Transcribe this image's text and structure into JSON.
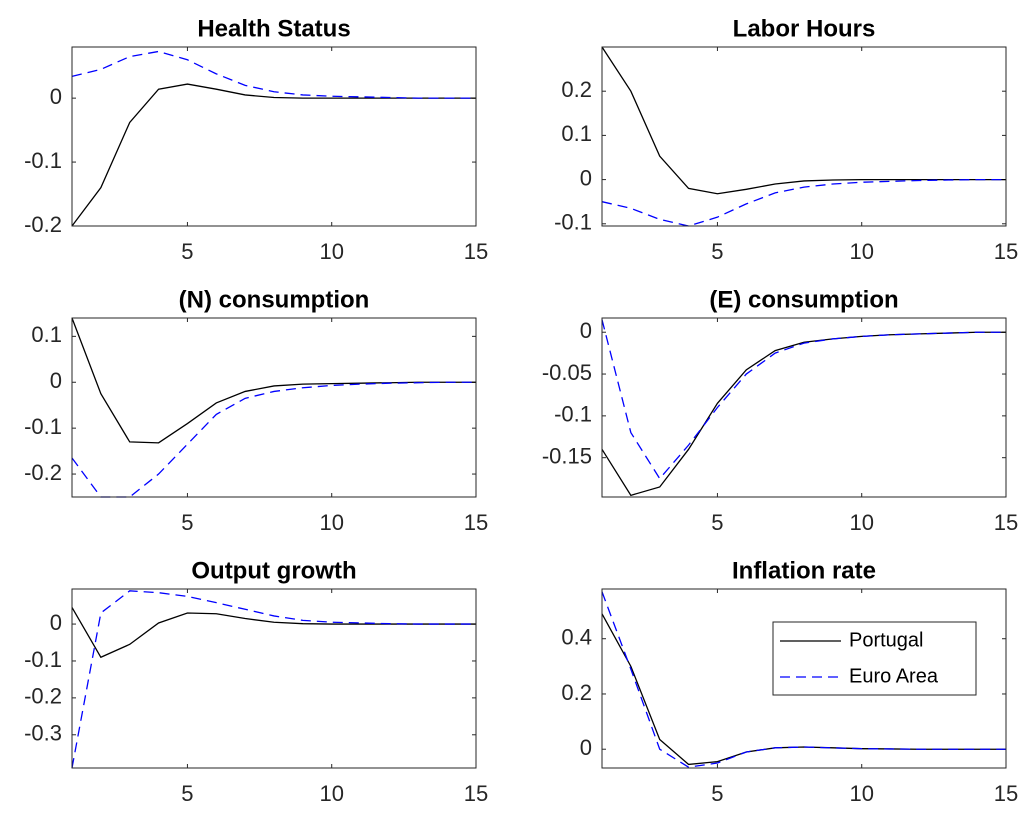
{
  "chart_data": [
    {
      "type": "line",
      "title": "Health Status",
      "x": [
        1,
        2,
        3,
        4,
        5,
        6,
        7,
        8,
        9,
        10,
        11,
        12,
        13,
        14,
        15
      ],
      "xlim": [
        1,
        15
      ],
      "xticks": [
        5,
        10,
        15
      ],
      "ylim": [
        -0.2,
        0.08
      ],
      "yticks": [
        -0.2,
        -0.1,
        0
      ],
      "series": [
        {
          "color": "#000000",
          "dash": "solid",
          "values": [
            -0.2,
            -0.14,
            -0.038,
            0.014,
            0.022,
            0.014,
            0.005,
            0.001,
            0,
            0,
            0,
            0,
            0,
            0,
            0
          ]
        },
        {
          "color": "#0000ff",
          "dash": "dashed",
          "values": [
            0.034,
            0.045,
            0.065,
            0.073,
            0.06,
            0.038,
            0.02,
            0.01,
            0.005,
            0.003,
            0.002,
            0.001,
            0,
            0,
            0
          ]
        }
      ]
    },
    {
      "type": "line",
      "title": "Labor Hours",
      "x": [
        1,
        2,
        3,
        4,
        5,
        6,
        7,
        8,
        9,
        10,
        11,
        12,
        13,
        14,
        15
      ],
      "xlim": [
        1,
        15
      ],
      "xticks": [
        5,
        10,
        15
      ],
      "ylim": [
        -0.105,
        0.3
      ],
      "yticks": [
        -0.1,
        0,
        0.1,
        0.2
      ],
      "series": [
        {
          "color": "#000000",
          "dash": "solid",
          "values": [
            0.3,
            0.2,
            0.053,
            -0.02,
            -0.032,
            -0.022,
            -0.01,
            -0.003,
            -0.001,
            0,
            0,
            0,
            0,
            0,
            0
          ]
        },
        {
          "color": "#0000ff",
          "dash": "dashed",
          "values": [
            -0.05,
            -0.065,
            -0.09,
            -0.105,
            -0.085,
            -0.055,
            -0.03,
            -0.017,
            -0.01,
            -0.006,
            -0.004,
            -0.002,
            -0.001,
            0,
            0
          ]
        }
      ]
    },
    {
      "type": "line",
      "title": "(N) consumption",
      "x": [
        1,
        2,
        3,
        4,
        5,
        6,
        7,
        8,
        9,
        10,
        11,
        12,
        13,
        14,
        15
      ],
      "xlim": [
        1,
        15
      ],
      "xticks": [
        5,
        10,
        15
      ],
      "ylim": [
        -0.25,
        0.14
      ],
      "yticks": [
        -0.2,
        -0.1,
        0,
        0.1
      ],
      "series": [
        {
          "color": "#000000",
          "dash": "solid",
          "values": [
            0.14,
            -0.025,
            -0.13,
            -0.132,
            -0.09,
            -0.045,
            -0.02,
            -0.008,
            -0.004,
            -0.003,
            -0.002,
            -0.001,
            0,
            0,
            0
          ]
        },
        {
          "color": "#0000ff",
          "dash": "dashed",
          "values": [
            -0.165,
            -0.25,
            -0.25,
            -0.2,
            -0.135,
            -0.07,
            -0.035,
            -0.02,
            -0.012,
            -0.007,
            -0.004,
            -0.002,
            -0.001,
            0,
            0
          ]
        }
      ]
    },
    {
      "type": "line",
      "title": "(E) consumption",
      "x": [
        1,
        2,
        3,
        4,
        5,
        6,
        7,
        8,
        9,
        10,
        11,
        12,
        13,
        14,
        15
      ],
      "xlim": [
        1,
        15
      ],
      "xticks": [
        5,
        10,
        15
      ],
      "ylim": [
        -0.197,
        0.017
      ],
      "yticks": [
        -0.15,
        -0.1,
        -0.05,
        0
      ],
      "series": [
        {
          "color": "#000000",
          "dash": "solid",
          "values": [
            -0.14,
            -0.195,
            -0.185,
            -0.14,
            -0.085,
            -0.045,
            -0.022,
            -0.012,
            -0.008,
            -0.005,
            -0.003,
            -0.002,
            -0.001,
            0,
            0
          ]
        },
        {
          "color": "#0000ff",
          "dash": "dashed",
          "values": [
            0.015,
            -0.12,
            -0.175,
            -0.135,
            -0.09,
            -0.05,
            -0.025,
            -0.013,
            -0.008,
            -0.005,
            -0.003,
            -0.002,
            -0.001,
            0,
            0
          ]
        }
      ]
    },
    {
      "type": "line",
      "title": "Output growth",
      "x": [
        1,
        2,
        3,
        4,
        5,
        6,
        7,
        8,
        9,
        10,
        11,
        12,
        13,
        14,
        15
      ],
      "xlim": [
        1,
        15
      ],
      "xticks": [
        5,
        10,
        15
      ],
      "ylim": [
        -0.39,
        0.095
      ],
      "yticks": [
        -0.3,
        -0.2,
        -0.1,
        0
      ],
      "series": [
        {
          "color": "#000000",
          "dash": "solid",
          "values": [
            0.045,
            -0.09,
            -0.055,
            0.003,
            0.03,
            0.028,
            0.015,
            0.005,
            0.001,
            0,
            0,
            0,
            0,
            0,
            0
          ]
        },
        {
          "color": "#0000ff",
          "dash": "dashed",
          "values": [
            -0.39,
            0.03,
            0.09,
            0.085,
            0.075,
            0.058,
            0.04,
            0.022,
            0.01,
            0.005,
            0.003,
            0.001,
            0,
            0,
            0
          ]
        }
      ]
    },
    {
      "type": "line",
      "title": "Inflation rate",
      "x": [
        1,
        2,
        3,
        4,
        5,
        6,
        7,
        8,
        9,
        10,
        11,
        12,
        13,
        14,
        15
      ],
      "xlim": [
        1,
        15
      ],
      "xticks": [
        5,
        10,
        15
      ],
      "ylim": [
        -0.068,
        0.58
      ],
      "yticks": [
        0,
        0.2,
        0.4
      ],
      "legend": "northeast",
      "series": [
        {
          "name": "Portugal",
          "color": "#000000",
          "dash": "solid",
          "values": [
            0.49,
            0.3,
            0.035,
            -0.055,
            -0.045,
            -0.01,
            0.005,
            0.008,
            0.005,
            0.002,
            0.001,
            0,
            0,
            0,
            0
          ]
        },
        {
          "name": "Euro Area",
          "color": "#0000ff",
          "dash": "dashed",
          "values": [
            0.57,
            0.29,
            0,
            -0.065,
            -0.05,
            -0.01,
            0.005,
            0.008,
            0.005,
            0.002,
            0.001,
            0,
            0,
            0,
            0
          ]
        }
      ]
    }
  ]
}
